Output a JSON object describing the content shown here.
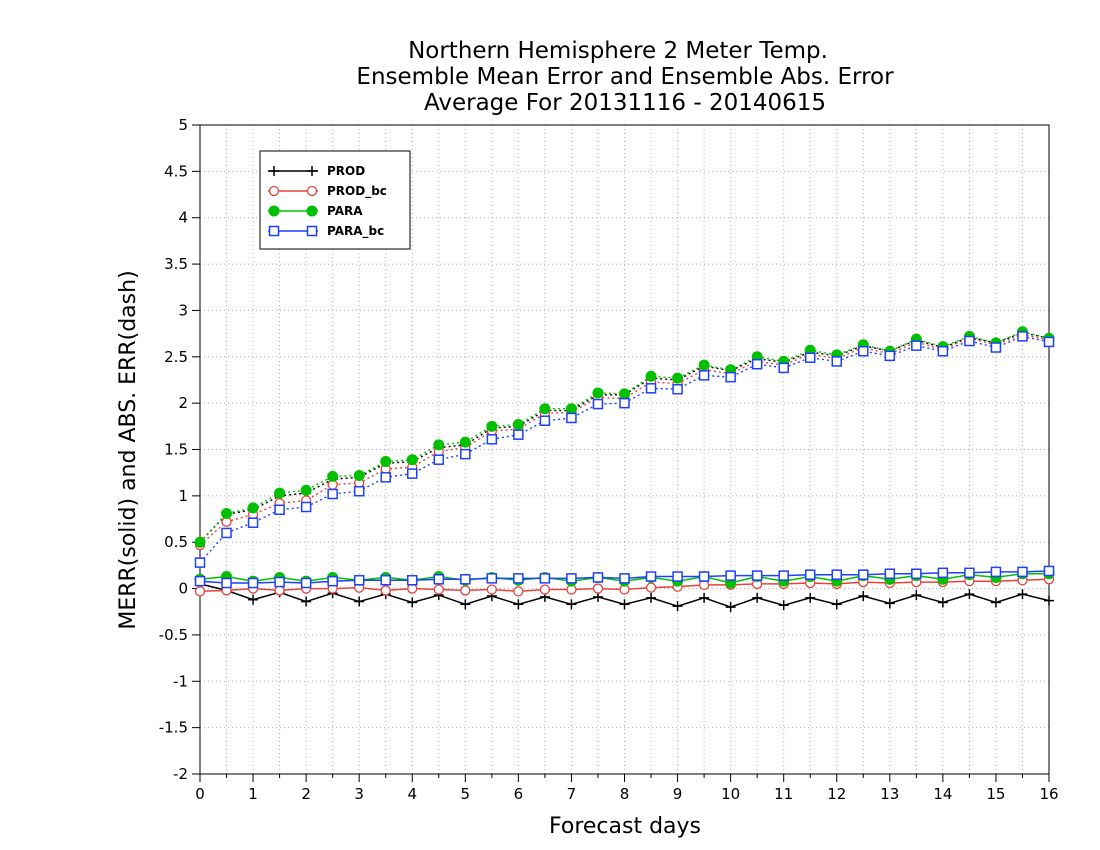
{
  "chart_data": {
    "type": "line",
    "title_lines": [
      "Northern Hemisphere 2 Meter Temp.",
      "Ensemble Mean Error and Ensemble Abs. Error",
      "Average For 20131116 - 20140615"
    ],
    "xlabel": "Forecast days",
    "ylabel": "MERR(solid) and ABS. ERR(dash)",
    "xlim": [
      0,
      16
    ],
    "ylim": [
      -2,
      5
    ],
    "x_ticks": [
      "0",
      "1",
      "2",
      "3",
      "4",
      "5",
      "6",
      "7",
      "8",
      "9",
      "10",
      "11",
      "12",
      "13",
      "14",
      "15",
      "16"
    ],
    "y_ticks": [
      "-2",
      "-1.5",
      "-1",
      "-0.5",
      "0",
      "0.5",
      "1",
      "1.5",
      "2",
      "2.5",
      "3",
      "3.5",
      "4",
      "4.5",
      "5"
    ],
    "grid": true,
    "legend_position": "top-left",
    "x": [
      0,
      0.5,
      1,
      1.5,
      2,
      2.5,
      3,
      3.5,
      4,
      4.5,
      5,
      5.5,
      6,
      6.5,
      7,
      7.5,
      8,
      8.5,
      9,
      9.5,
      10,
      10.5,
      11,
      11.5,
      12,
      12.5,
      13,
      13.5,
      14,
      14.5,
      15,
      15.5,
      16
    ],
    "series": [
      {
        "name": "PROD",
        "color": "#000000",
        "marker": "plus",
        "merr": [
          0.05,
          -0.02,
          -0.12,
          -0.04,
          -0.14,
          -0.05,
          -0.14,
          -0.06,
          -0.15,
          -0.07,
          -0.17,
          -0.08,
          -0.17,
          -0.09,
          -0.17,
          -0.09,
          -0.17,
          -0.1,
          -0.19,
          -0.1,
          -0.2,
          -0.1,
          -0.18,
          -0.1,
          -0.17,
          -0.08,
          -0.16,
          -0.07,
          -0.15,
          -0.06,
          -0.15,
          -0.06,
          -0.13
        ],
        "abs_err": [
          0.5,
          0.8,
          0.85,
          1.0,
          1.03,
          1.18,
          1.2,
          1.35,
          1.37,
          1.52,
          1.55,
          1.73,
          1.75,
          1.92,
          1.92,
          2.09,
          2.09,
          2.27,
          2.25,
          2.4,
          2.35,
          2.48,
          2.44,
          2.55,
          2.51,
          2.62,
          2.56,
          2.68,
          2.6,
          2.71,
          2.65,
          2.76,
          2.7
        ]
      },
      {
        "name": "PROD_bc",
        "color": "#e8413c",
        "marker": "circle",
        "merr": [
          -0.03,
          -0.02,
          0.0,
          -0.02,
          0.0,
          0.0,
          0.01,
          -0.02,
          0.0,
          -0.01,
          -0.02,
          -0.01,
          -0.03,
          -0.01,
          -0.01,
          0.0,
          -0.01,
          0.01,
          0.02,
          0.04,
          0.04,
          0.05,
          0.05,
          0.06,
          0.05,
          0.07,
          0.06,
          0.07,
          0.07,
          0.08,
          0.08,
          0.09,
          0.1
        ],
        "abs_err": [
          0.47,
          0.72,
          0.8,
          0.92,
          0.95,
          1.12,
          1.14,
          1.29,
          1.31,
          1.48,
          1.52,
          1.7,
          1.72,
          1.89,
          1.9,
          2.06,
          2.05,
          2.23,
          2.21,
          2.36,
          2.32,
          2.45,
          2.41,
          2.53,
          2.48,
          2.6,
          2.53,
          2.66,
          2.58,
          2.7,
          2.63,
          2.74,
          2.68
        ]
      },
      {
        "name": "PARA",
        "color": "#00c000",
        "marker": "filled-circle",
        "merr": [
          0.1,
          0.13,
          0.08,
          0.12,
          0.08,
          0.12,
          0.09,
          0.12,
          0.09,
          0.13,
          0.09,
          0.12,
          0.09,
          0.12,
          0.08,
          0.12,
          0.08,
          0.12,
          0.08,
          0.13,
          0.06,
          0.13,
          0.08,
          0.13,
          0.08,
          0.14,
          0.1,
          0.14,
          0.1,
          0.15,
          0.12,
          0.16,
          0.16
        ],
        "abs_err": [
          0.5,
          0.81,
          0.87,
          1.03,
          1.06,
          1.21,
          1.22,
          1.37,
          1.39,
          1.55,
          1.58,
          1.75,
          1.77,
          1.94,
          1.94,
          2.11,
          2.1,
          2.29,
          2.27,
          2.41,
          2.36,
          2.5,
          2.45,
          2.57,
          2.52,
          2.63,
          2.56,
          2.69,
          2.61,
          2.72,
          2.65,
          2.77,
          2.7
        ]
      },
      {
        "name": "PARA_bc",
        "color": "#1f3fff",
        "marker": "square",
        "merr": [
          0.08,
          0.06,
          0.06,
          0.07,
          0.06,
          0.08,
          0.09,
          0.09,
          0.09,
          0.1,
          0.1,
          0.11,
          0.11,
          0.11,
          0.11,
          0.12,
          0.11,
          0.13,
          0.13,
          0.13,
          0.14,
          0.14,
          0.14,
          0.15,
          0.15,
          0.15,
          0.16,
          0.16,
          0.17,
          0.17,
          0.18,
          0.18,
          0.19
        ],
        "abs_err": [
          0.28,
          0.6,
          0.71,
          0.85,
          0.88,
          1.02,
          1.05,
          1.2,
          1.24,
          1.39,
          1.45,
          1.61,
          1.66,
          1.81,
          1.84,
          1.99,
          2.0,
          2.16,
          2.15,
          2.3,
          2.28,
          2.42,
          2.38,
          2.49,
          2.45,
          2.56,
          2.51,
          2.62,
          2.56,
          2.67,
          2.6,
          2.72,
          2.66
        ]
      }
    ]
  }
}
